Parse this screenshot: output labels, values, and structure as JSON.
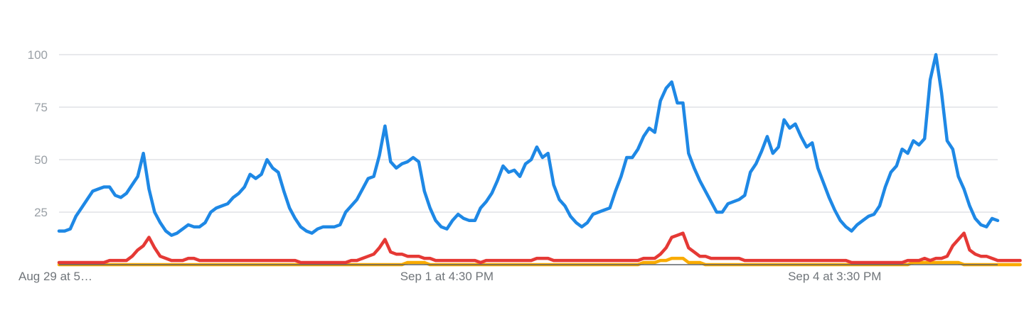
{
  "chart_data": {
    "type": "line",
    "title": "",
    "xlabel": "",
    "ylabel": "",
    "ylim": [
      0,
      100
    ],
    "yticks": [
      25,
      50,
      75,
      100
    ],
    "grid": true,
    "x_labels": [
      {
        "index": 0,
        "text": "Aug 29 at 5…"
      },
      {
        "index": 69,
        "text": "Sep 1 at 4:30 PM"
      },
      {
        "index": 138,
        "text": "Sep 4 at 3:30 PM"
      }
    ],
    "series": [
      {
        "color": "#1e88e5",
        "values": [
          16,
          16,
          17,
          23,
          27,
          31,
          35,
          36,
          37,
          37,
          33,
          32,
          34,
          38,
          42,
          53,
          36,
          25,
          20,
          16,
          14,
          15,
          17,
          19,
          18,
          18,
          20,
          25,
          27,
          28,
          29,
          32,
          34,
          37,
          43,
          41,
          43,
          50,
          46,
          44,
          35,
          27,
          22,
          18,
          16,
          15,
          17,
          18,
          18,
          18,
          19,
          25,
          28,
          31,
          36,
          41,
          42,
          52,
          66,
          49,
          46,
          48,
          49,
          51,
          49,
          35,
          27,
          21,
          18,
          17,
          21,
          24,
          22,
          21,
          21,
          27,
          30,
          34,
          40,
          47,
          44,
          45,
          42,
          48,
          50,
          56,
          51,
          53,
          38,
          31,
          28,
          23,
          20,
          18,
          20,
          24,
          25,
          26,
          27,
          35,
          42,
          51,
          51,
          55,
          61,
          65,
          63,
          78,
          84,
          87,
          77,
          77,
          53,
          46,
          40,
          35,
          30,
          25,
          25,
          29,
          30,
          31,
          33,
          44,
          48,
          54,
          61,
          53,
          56,
          69,
          65,
          67,
          61,
          56,
          58,
          46,
          39,
          32,
          26,
          21,
          18,
          16,
          19,
          21,
          23,
          24,
          28,
          37,
          44,
          47,
          55,
          53,
          59,
          57,
          60,
          88,
          100,
          82,
          59,
          55,
          42,
          36,
          28,
          22,
          19,
          18,
          22,
          21
        ]
      },
      {
        "color": "#e53935",
        "values": [
          1,
          1,
          1,
          1,
          1,
          1,
          1,
          1,
          1,
          2,
          2,
          2,
          2,
          4,
          7,
          9,
          13,
          8,
          4,
          3,
          2,
          2,
          2,
          3,
          3,
          2,
          2,
          2,
          2,
          2,
          2,
          2,
          2,
          2,
          2,
          2,
          2,
          2,
          2,
          2,
          2,
          2,
          2,
          1,
          1,
          1,
          1,
          1,
          1,
          1,
          1,
          1,
          2,
          2,
          3,
          4,
          5,
          8,
          12,
          6,
          5,
          5,
          4,
          4,
          4,
          3,
          3,
          2,
          2,
          2,
          2,
          2,
          2,
          2,
          2,
          1,
          2,
          2,
          2,
          2,
          2,
          2,
          2,
          2,
          2,
          3,
          3,
          3,
          2,
          2,
          2,
          2,
          2,
          2,
          2,
          2,
          2,
          2,
          2,
          2,
          2,
          2,
          2,
          2,
          3,
          3,
          3,
          5,
          8,
          13,
          14,
          15,
          8,
          6,
          4,
          4,
          3,
          3,
          3,
          3,
          3,
          3,
          2,
          2,
          2,
          2,
          2,
          2,
          2,
          2,
          2,
          2,
          2,
          2,
          2,
          2,
          2,
          2,
          2,
          2,
          2,
          1,
          1,
          1,
          1,
          1,
          1,
          1,
          1,
          1,
          1,
          2,
          2,
          2,
          3,
          2,
          3,
          3,
          4,
          9,
          12,
          15,
          7,
          5,
          4,
          4,
          3,
          2,
          2,
          2,
          2,
          2
        ]
      },
      {
        "color": "#f9ab00",
        "values": [
          0,
          0,
          0,
          0,
          0,
          0,
          0,
          0,
          0,
          0,
          0,
          0,
          0,
          0,
          0,
          0,
          0,
          0,
          0,
          0,
          0,
          0,
          0,
          0,
          0,
          0,
          0,
          0,
          0,
          0,
          0,
          0,
          0,
          0,
          0,
          0,
          0,
          0,
          0,
          0,
          0,
          0,
          0,
          0,
          0,
          0,
          0,
          0,
          0,
          0,
          0,
          0,
          0,
          0,
          0,
          0,
          0,
          0,
          0,
          0,
          0,
          0,
          1,
          1,
          1,
          1,
          0,
          0,
          0,
          0,
          0,
          0,
          0,
          0,
          0,
          0,
          0,
          0,
          0,
          0,
          0,
          0,
          0,
          0,
          0,
          0,
          0,
          0,
          0,
          0,
          0,
          0,
          0,
          0,
          0,
          0,
          0,
          0,
          0,
          0,
          0,
          0,
          0,
          0,
          1,
          1,
          1,
          2,
          2,
          3,
          3,
          3,
          1,
          1,
          1,
          0,
          0,
          0,
          0,
          0,
          0,
          0,
          0,
          0,
          0,
          0,
          0,
          0,
          0,
          0,
          0,
          0,
          0,
          0,
          0,
          0,
          0,
          0,
          0,
          0,
          0,
          0,
          0,
          0,
          0,
          0,
          0,
          0,
          0,
          0,
          0,
          0,
          1,
          1,
          1,
          1,
          1,
          1,
          1,
          1,
          1,
          0,
          0,
          0,
          0,
          0,
          0,
          0,
          0,
          0,
          0,
          0
        ]
      }
    ]
  }
}
